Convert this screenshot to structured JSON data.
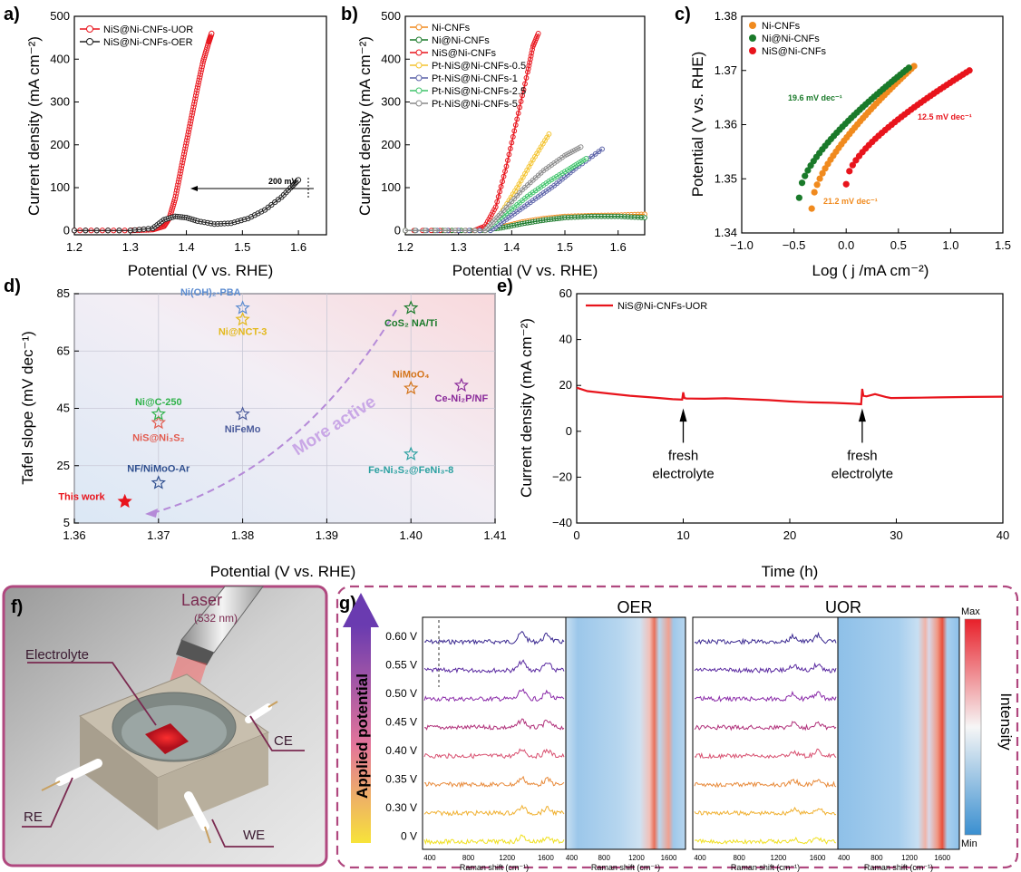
{
  "panels": {
    "a": {
      "label": "a)",
      "type": "line",
      "xlabel": "Potential (V vs. RHE)",
      "ylabel": "Current density (mA cm⁻²)",
      "xlim": [
        1.2,
        1.65
      ],
      "ylim": [
        -10,
        500
      ],
      "xticks": [
        "1.2",
        "1.3",
        "1.4",
        "1.5",
        "1.6"
      ],
      "xtickvals": [
        1.2,
        1.3,
        1.4,
        1.5,
        1.6
      ],
      "yticks": [
        "0",
        "100",
        "200",
        "300",
        "400",
        "500"
      ],
      "ytickvals": [
        0,
        100,
        200,
        300,
        400,
        500
      ],
      "annotation": "200 mV",
      "series": [
        {
          "name": "NiS@Ni-CNFs-UOR",
          "color": "#e8141c",
          "x": [
            1.2,
            1.3,
            1.34,
            1.36,
            1.37,
            1.38,
            1.39,
            1.4,
            1.41,
            1.42,
            1.43,
            1.44,
            1.445
          ],
          "y": [
            0,
            0,
            2,
            10,
            30,
            75,
            140,
            205,
            270,
            335,
            395,
            440,
            460
          ]
        },
        {
          "name": "NiS@Ni-CNFs-OER",
          "color": "#222222",
          "x": [
            1.2,
            1.3,
            1.34,
            1.36,
            1.38,
            1.4,
            1.42,
            1.45,
            1.48,
            1.51,
            1.54,
            1.57,
            1.59,
            1.6
          ],
          "y": [
            0,
            0,
            5,
            25,
            33,
            30,
            22,
            15,
            17,
            28,
            48,
            78,
            105,
            118
          ]
        }
      ]
    },
    "b": {
      "label": "b)",
      "type": "line",
      "xlabel": "Potential (V vs. RHE)",
      "ylabel": "Current density (mA cm⁻²)",
      "xlim": [
        1.2,
        1.65
      ],
      "ylim": [
        -10,
        500
      ],
      "xticks": [
        "1.2",
        "1.3",
        "1.4",
        "1.5",
        "1.6"
      ],
      "xtickvals": [
        1.2,
        1.3,
        1.4,
        1.5,
        1.6
      ],
      "yticks": [
        "0",
        "100",
        "200",
        "300",
        "400",
        "500"
      ],
      "ytickvals": [
        0,
        100,
        200,
        300,
        400,
        500
      ],
      "series": [
        {
          "name": "Ni-CNFs",
          "color": "#f08a1e",
          "x": [
            1.2,
            1.34,
            1.38,
            1.42,
            1.46,
            1.5,
            1.55,
            1.6,
            1.65
          ],
          "y": [
            0,
            0,
            8,
            20,
            28,
            33,
            35,
            36,
            38
          ]
        },
        {
          "name": "Ni@Ni-CNFs",
          "color": "#1a7a2a",
          "x": [
            1.2,
            1.34,
            1.38,
            1.42,
            1.46,
            1.5,
            1.55,
            1.6,
            1.65
          ],
          "y": [
            0,
            0,
            6,
            16,
            24,
            30,
            33,
            33,
            30
          ]
        },
        {
          "name": "NiS@Ni-CNFs",
          "color": "#e8141c",
          "x": [
            1.2,
            1.33,
            1.35,
            1.37,
            1.39,
            1.41,
            1.43,
            1.44,
            1.45
          ],
          "y": [
            0,
            0,
            10,
            55,
            150,
            260,
            370,
            430,
            460
          ]
        },
        {
          "name": "Pt-NiS@Ni-CNFs-0.5",
          "color": "#f4c430",
          "x": [
            1.2,
            1.35,
            1.38,
            1.41,
            1.44,
            1.47
          ],
          "y": [
            0,
            0,
            40,
            100,
            165,
            225
          ]
        },
        {
          "name": "Pt-NiS@Ni-CNFs-1",
          "color": "#5b62a8",
          "x": [
            1.2,
            1.36,
            1.4,
            1.44,
            1.48,
            1.52,
            1.57
          ],
          "y": [
            0,
            0,
            35,
            70,
            105,
            145,
            190
          ]
        },
        {
          "name": "Pt-NiS@Ni-CNFs-2.5",
          "color": "#3ec36a",
          "x": [
            1.2,
            1.35,
            1.39,
            1.43,
            1.47,
            1.51,
            1.54
          ],
          "y": [
            0,
            0,
            40,
            80,
            115,
            145,
            168
          ]
        },
        {
          "name": "Pt-NiS@Ni-CNFs-5",
          "color": "#8a8a8a",
          "x": [
            1.2,
            1.35,
            1.38,
            1.42,
            1.46,
            1.5,
            1.53
          ],
          "y": [
            0,
            0,
            40,
            95,
            140,
            175,
            195
          ]
        }
      ]
    },
    "c": {
      "label": "c)",
      "type": "scatter",
      "xlabel": "Log ( j /mA cm⁻²)",
      "ylabel": "Potential (V vs. RHE)",
      "xlim": [
        -1.0,
        1.5
      ],
      "ylim": [
        1.34,
        1.38
      ],
      "xticks": [
        "−1.0",
        "−0.5",
        "0.0",
        "0.5",
        "1.0",
        "1.5"
      ],
      "xtickvals": [
        -1.0,
        -0.5,
        0,
        0.5,
        1.0,
        1.5
      ],
      "yticks": [
        "1.34",
        "1.35",
        "1.36",
        "1.37",
        "1.38"
      ],
      "ytickvals": [
        1.34,
        1.35,
        1.36,
        1.37,
        1.38
      ],
      "annotations": [
        {
          "text": "19.6 mV dec⁻¹",
          "color": "#1a7a2a"
        },
        {
          "text": "12.5 mV dec⁻¹",
          "color": "#e8141c"
        },
        {
          "text": "21.2 mV dec⁻¹",
          "color": "#f08a1e"
        }
      ],
      "series": [
        {
          "name": "Ni-CNFs",
          "color": "#f08a1e",
          "x0": -0.33,
          "x1": 0.65,
          "y0": 1.3445,
          "y1": 1.3708
        },
        {
          "name": "Ni@Ni-CNFs",
          "color": "#1a7a2a",
          "x0": -0.45,
          "x1": 0.6,
          "y0": 1.3465,
          "y1": 1.3705
        },
        {
          "name": "NiS@Ni-CNFs",
          "color": "#e8141c",
          "x0": 0.0,
          "x1": 1.18,
          "y0": 1.349,
          "y1": 1.37
        }
      ]
    },
    "d": {
      "label": "d)",
      "type": "scatter",
      "xlabel": "Potential (V vs. RHE)",
      "ylabel": "Tafel slope (mV dec⁻¹)",
      "xlim": [
        1.36,
        1.41
      ],
      "ylim": [
        5,
        85
      ],
      "xticks": [
        "1.36",
        "1.37",
        "1.38",
        "1.39",
        "1.40",
        "1.41"
      ],
      "xtickvals": [
        1.36,
        1.37,
        1.38,
        1.39,
        1.4,
        1.41
      ],
      "yticks": [
        "5",
        "25",
        "45",
        "65",
        "85"
      ],
      "ytickvals": [
        5,
        25,
        45,
        65,
        85
      ],
      "arrow_label": "More active",
      "points": [
        {
          "label": "This work",
          "x": 1.366,
          "y": 12.5,
          "color": "#e8141c",
          "filled": true
        },
        {
          "label": "NF/NiMoO-Ar",
          "x": 1.37,
          "y": 19,
          "color": "#2f4f8f"
        },
        {
          "label": "NiS@Ni₃S₂",
          "x": 1.37,
          "y": 40,
          "color": "#e25b4f"
        },
        {
          "label": "Ni@C-250",
          "x": 1.37,
          "y": 43,
          "color": "#2fb24a"
        },
        {
          "label": "NiFeMo",
          "x": 1.38,
          "y": 43,
          "color": "#4b5b9b"
        },
        {
          "label": "Ni(OH)₂-PBA",
          "x": 1.38,
          "y": 80,
          "color": "#5b8bd0"
        },
        {
          "label": "Ni@NCT-3",
          "x": 1.38,
          "y": 76,
          "color": "#e3b81a"
        },
        {
          "label": "CoS₂ NA/Ti",
          "x": 1.4,
          "y": 80,
          "color": "#1a7a2a"
        },
        {
          "label": "NiMoO₄",
          "x": 1.4,
          "y": 52,
          "color": "#d4741a"
        },
        {
          "label": "Ce-Ni₂P/NF",
          "x": 1.406,
          "y": 53,
          "color": "#8a2a9a"
        },
        {
          "label": "Fe-Ni₃S₂@FeNi₃-8",
          "x": 1.4,
          "y": 29,
          "color": "#2aa0a0"
        }
      ]
    },
    "e": {
      "label": "e)",
      "type": "line",
      "xlabel": "Time (h)",
      "ylabel": "Current density (mA cm⁻²)",
      "xlim": [
        0,
        40
      ],
      "ylim": [
        -40,
        60
      ],
      "xticks": [
        "0",
        "10",
        "20",
        "30",
        "40"
      ],
      "xtickvals": [
        0,
        10,
        20,
        30,
        40
      ],
      "yticks": [
        "−40",
        "−20",
        "0",
        "20",
        "40",
        "60"
      ],
      "ytickvals": [
        -40,
        -20,
        0,
        20,
        40,
        60
      ],
      "legend": "NiS@Ni-CNFs-UOR",
      "annotations": [
        {
          "line1": "fresh",
          "line2": "electrolyte",
          "x": 10
        },
        {
          "line1": "fresh",
          "line2": "electrolyte",
          "x": 26.8
        }
      ],
      "series": [
        {
          "name": "NiS@Ni-CNFs-UOR",
          "color": "#e8141c",
          "x": [
            0,
            1,
            3,
            5,
            7,
            9,
            9.9,
            10,
            10.1,
            10.3,
            12,
            14,
            16,
            18,
            20,
            22,
            24,
            26,
            26.7,
            26.8,
            26.9,
            27.2,
            28,
            29,
            29.5,
            31,
            34,
            37,
            40
          ],
          "y": [
            19,
            17.5,
            16.5,
            15.5,
            14.8,
            14,
            13.8,
            17,
            14.5,
            14.3,
            14.2,
            14.4,
            14.0,
            13.6,
            13.0,
            12.6,
            12.4,
            12.0,
            11.8,
            18.5,
            15.5,
            15.2,
            16.2,
            15.0,
            14.5,
            14.6,
            14.8,
            15.0,
            15.1
          ]
        }
      ]
    },
    "f": {
      "label": "f)",
      "laser": "Laser",
      "laser_wl": "(532 nm)",
      "electrolyte": "Electrolyte",
      "ce": "CE",
      "re": "RE",
      "we": "WE"
    },
    "g": {
      "label": "g)",
      "oer_title": "OER",
      "uor_title": "UOR",
      "y_axis_label": "Applied potential",
      "potentials": [
        "0.60 V",
        "0.55 V",
        "0.50 V",
        "0.45 V",
        "0.40 V",
        "0.35 V",
        "0.30 V",
        "0 V"
      ],
      "trace_colors": [
        "#3a2890",
        "#5a2aa0",
        "#8a2aa8",
        "#b0307a",
        "#d85070",
        "#e88a3a",
        "#f0b030",
        "#f0e020"
      ],
      "raman_xticks": [
        "400",
        "800",
        "1200",
        "1600"
      ],
      "raman_xlabel": "Raman shift (cm⁻¹)",
      "colorbar_max": "Max",
      "colorbar_min": "Min",
      "colorbar_label": "Intensity"
    }
  }
}
